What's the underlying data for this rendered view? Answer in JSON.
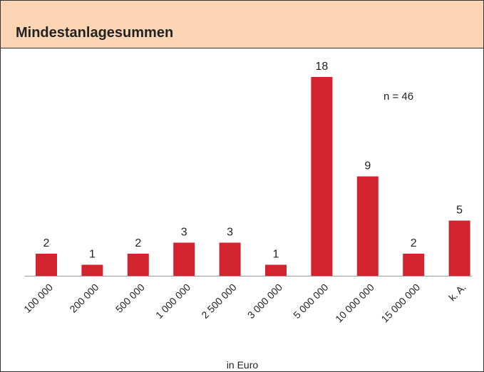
{
  "chart_data": {
    "type": "bar",
    "title": "Mindestanlagesummen",
    "annotation": "n = 46",
    "x_label": "in Euro",
    "categories": [
      "100 000",
      "200 000",
      "500 000",
      "1 000 000",
      "2 500 000",
      "3 000 000",
      "5 000 000",
      "10 000 000",
      "15 000 000",
      "k. A."
    ],
    "values": [
      2,
      1,
      2,
      3,
      3,
      1,
      18,
      9,
      2,
      5
    ],
    "color": "#d2232e"
  }
}
